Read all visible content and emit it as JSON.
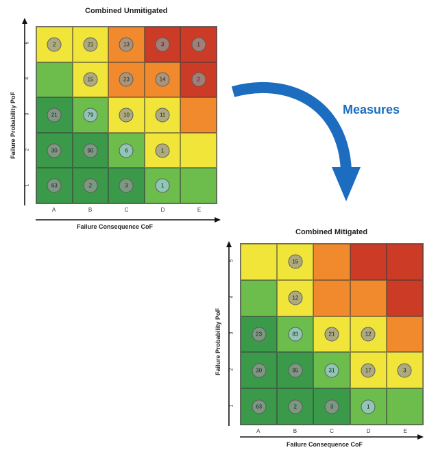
{
  "colors": {
    "dark_green": "#3a9a4a",
    "green": "#6dbd4d",
    "yellow": "#f1e53a",
    "orange": "#f08a2c",
    "red": "#cc3b25",
    "arrow_blue": "#1c6dbf"
  },
  "arrow_label": "Measures",
  "unmitigated": {
    "title": "Combined Unmitigated",
    "xlabel": "Failure Consequence CoF",
    "ylabel": "Failure Probability PoF",
    "x_ticks": [
      "A",
      "B",
      "C",
      "D",
      "E"
    ],
    "y_ticks": [
      "5",
      "4",
      "3",
      "2",
      "1"
    ],
    "rows": [
      [
        {
          "c": "yellow",
          "v": "2"
        },
        {
          "c": "yellow",
          "v": "21"
        },
        {
          "c": "orange",
          "v": "13"
        },
        {
          "c": "red",
          "v": "3"
        },
        {
          "c": "red",
          "v": "1"
        }
      ],
      [
        {
          "c": "green",
          "v": ""
        },
        {
          "c": "yellow",
          "v": "15"
        },
        {
          "c": "orange",
          "v": "23"
        },
        {
          "c": "orange",
          "v": "14"
        },
        {
          "c": "red",
          "v": "2"
        }
      ],
      [
        {
          "c": "dark_green",
          "v": "21"
        },
        {
          "c": "green",
          "v": "79"
        },
        {
          "c": "yellow",
          "v": "10"
        },
        {
          "c": "yellow",
          "v": "11"
        },
        {
          "c": "orange",
          "v": ""
        }
      ],
      [
        {
          "c": "dark_green",
          "v": "30"
        },
        {
          "c": "dark_green",
          "v": "90"
        },
        {
          "c": "green",
          "v": "6"
        },
        {
          "c": "yellow",
          "v": "1"
        },
        {
          "c": "yellow",
          "v": ""
        }
      ],
      [
        {
          "c": "dark_green",
          "v": "63"
        },
        {
          "c": "dark_green",
          "v": "2"
        },
        {
          "c": "dark_green",
          "v": "3"
        },
        {
          "c": "green",
          "v": "1"
        },
        {
          "c": "green",
          "v": ""
        }
      ]
    ]
  },
  "mitigated": {
    "title": "Combined Mitigated",
    "xlabel": "Failure Consequence CoF",
    "ylabel": "Failure Probability PoF",
    "x_ticks": [
      "A",
      "B",
      "C",
      "D",
      "E"
    ],
    "y_ticks": [
      "5",
      "4",
      "3",
      "2",
      "1"
    ],
    "rows": [
      [
        {
          "c": "yellow",
          "v": ""
        },
        {
          "c": "yellow",
          "v": "15"
        },
        {
          "c": "orange",
          "v": ""
        },
        {
          "c": "red",
          "v": ""
        },
        {
          "c": "red",
          "v": ""
        }
      ],
      [
        {
          "c": "green",
          "v": ""
        },
        {
          "c": "yellow",
          "v": "12"
        },
        {
          "c": "orange",
          "v": ""
        },
        {
          "c": "orange",
          "v": ""
        },
        {
          "c": "red",
          "v": ""
        }
      ],
      [
        {
          "c": "dark_green",
          "v": "23"
        },
        {
          "c": "green",
          "v": "83"
        },
        {
          "c": "yellow",
          "v": "21"
        },
        {
          "c": "yellow",
          "v": "12"
        },
        {
          "c": "orange",
          "v": ""
        }
      ],
      [
        {
          "c": "dark_green",
          "v": "30"
        },
        {
          "c": "dark_green",
          "v": "95"
        },
        {
          "c": "green",
          "v": "31"
        },
        {
          "c": "yellow",
          "v": "17"
        },
        {
          "c": "yellow",
          "v": "3"
        }
      ],
      [
        {
          "c": "dark_green",
          "v": "63"
        },
        {
          "c": "dark_green",
          "v": "2"
        },
        {
          "c": "dark_green",
          "v": "3"
        },
        {
          "c": "green",
          "v": "1"
        },
        {
          "c": "green",
          "v": ""
        }
      ]
    ]
  }
}
